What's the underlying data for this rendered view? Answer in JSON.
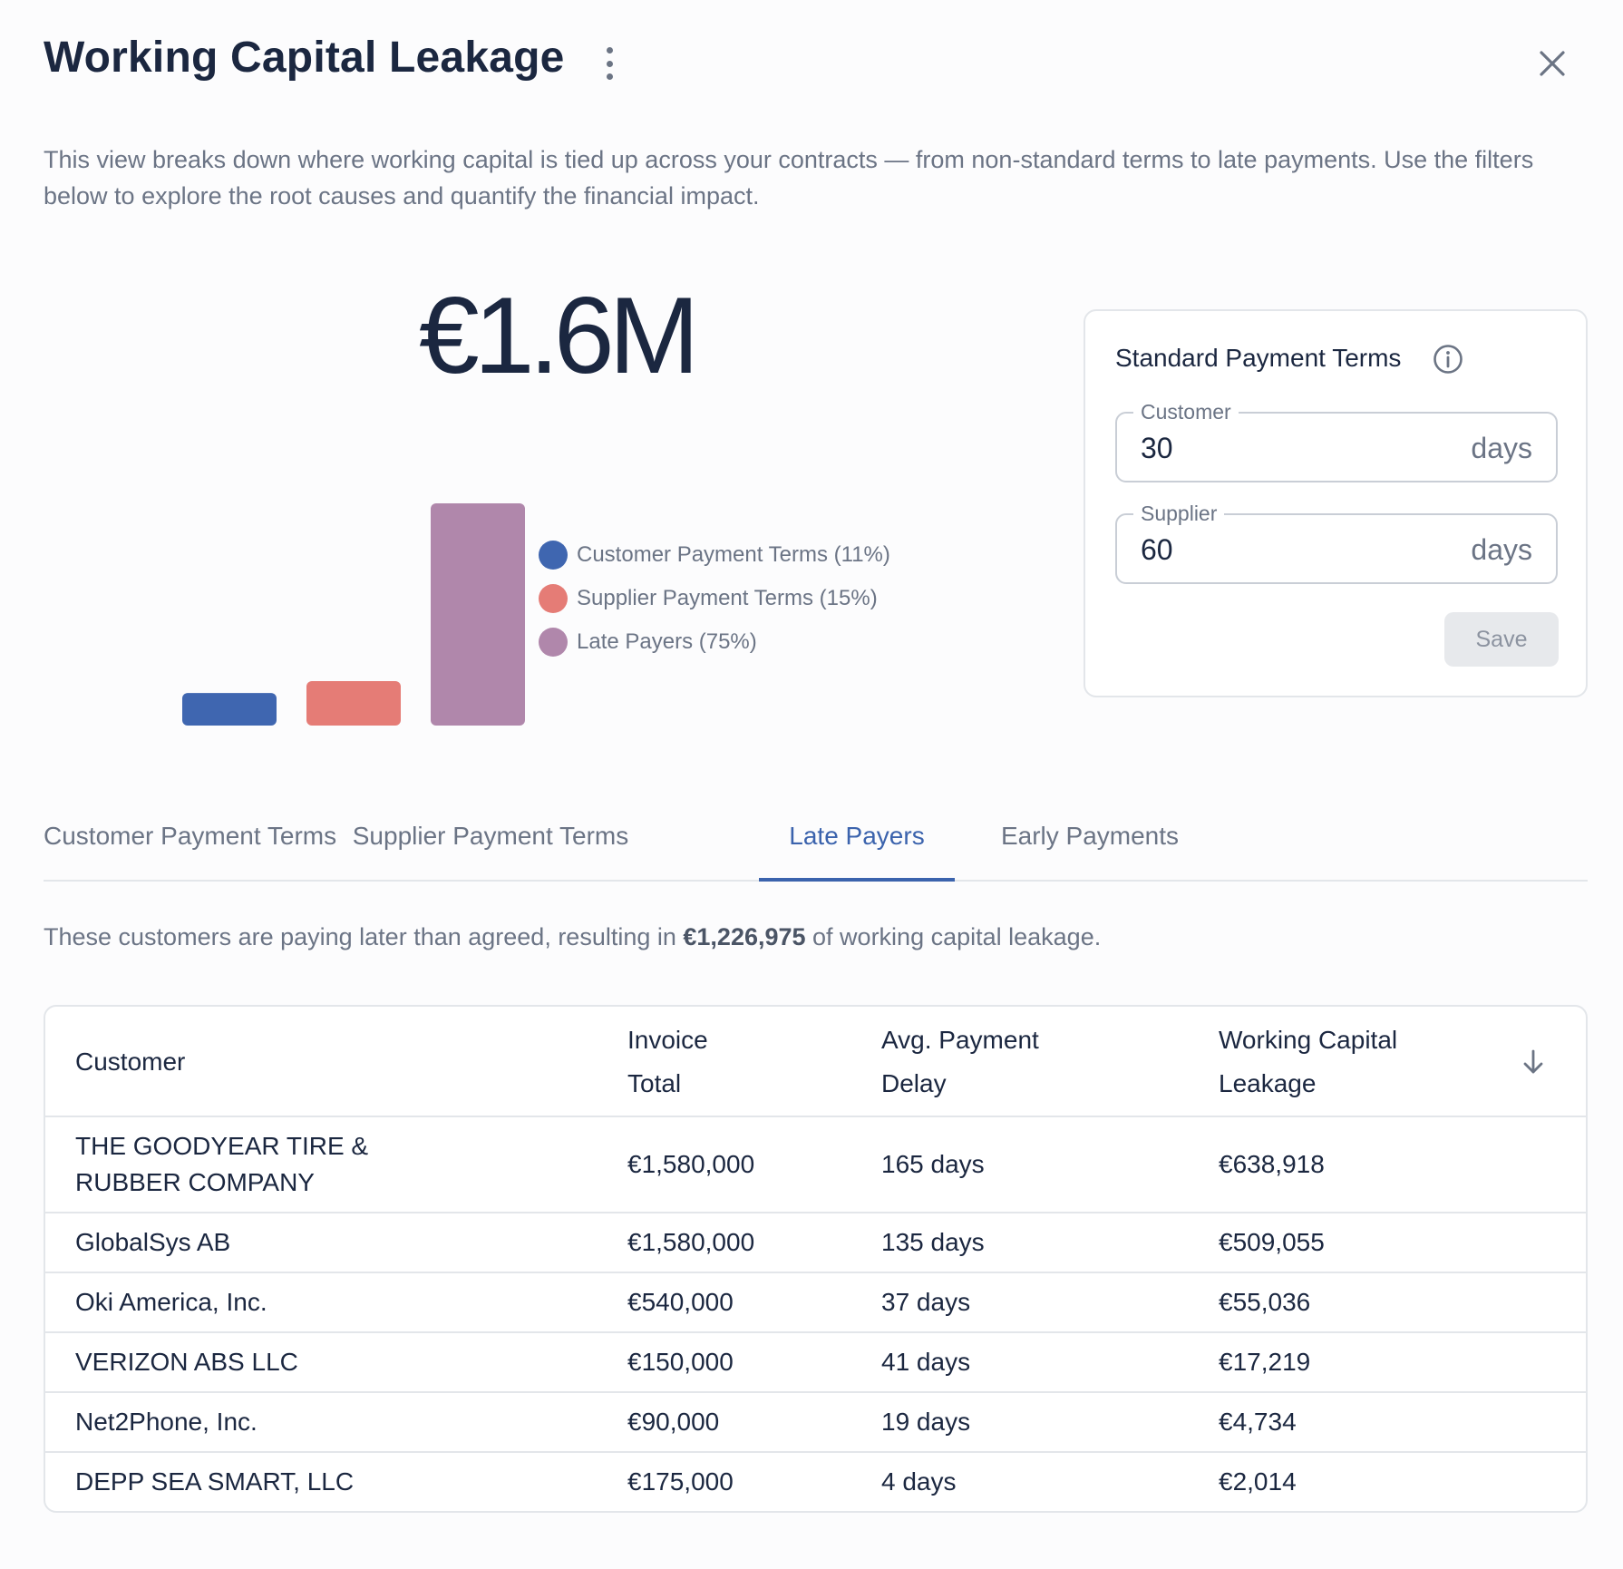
{
  "header": {
    "title": "Working Capital Leakage",
    "description": "This view breaks down where working capital is tied up across your contracts — from non-standard terms to late payments. Use the filters below to explore the root causes and quantify the financial impact."
  },
  "icons": {
    "more": "more-vertical-icon",
    "close": "close-icon",
    "info": "info-icon",
    "sort": "arrow-down-icon"
  },
  "total": "€1.6M",
  "chart_data": {
    "type": "bar",
    "categories": [
      "Customer Payment Terms",
      "Supplier Payment Terms",
      "Late Payers"
    ],
    "values": [
      11,
      15,
      75
    ],
    "unit": "%",
    "legend": [
      "Customer Payment Terms (11%)",
      "Supplier Payment Terms (15%)",
      "Late Payers (75%)"
    ],
    "colors": [
      "#3f66b0",
      "#e57c76",
      "#b087ab"
    ],
    "legend_placement": "right"
  },
  "terms": {
    "title": "Standard Payment Terms",
    "customer": {
      "label": "Customer",
      "value": "30",
      "unit": "days"
    },
    "supplier": {
      "label": "Supplier",
      "value": "60",
      "unit": "days"
    },
    "save_label": "Save"
  },
  "tabs": [
    {
      "label": "Customer Payment Terms",
      "active": false
    },
    {
      "label": "Supplier Payment Terms",
      "active": false
    },
    {
      "label": "Late Payers",
      "active": true
    },
    {
      "label": "Early Payments",
      "active": false
    }
  ],
  "summary": {
    "prefix": "These customers are paying later than agreed, resulting in ",
    "amount": "€1,226,975",
    "suffix": " of working capital leakage."
  },
  "table": {
    "headers": {
      "customer": "Customer",
      "invoice_line1": "Invoice",
      "invoice_line2": "Total",
      "delay_line1": "Avg. Payment",
      "delay_line2": "Delay",
      "leakage_line1": "Working Capital",
      "leakage_line2": "Leakage"
    },
    "rows": [
      {
        "customer": "THE GOODYEAR TIRE & RUBBER COMPANY",
        "invoice": "€1,580,000",
        "delay": "165 days",
        "leakage": "€638,918"
      },
      {
        "customer": "GlobalSys AB",
        "invoice": "€1,580,000",
        "delay": "135 days",
        "leakage": "€509,055"
      },
      {
        "customer": "Oki America, Inc.",
        "invoice": "€540,000",
        "delay": "37 days",
        "leakage": "€55,036"
      },
      {
        "customer": "VERIZON ABS LLC",
        "invoice": "€150,000",
        "delay": "41 days",
        "leakage": "€17,219"
      },
      {
        "customer": "Net2Phone, Inc.",
        "invoice": "€90,000",
        "delay": "19 days",
        "leakage": "€4,734"
      },
      {
        "customer": "DEPP SEA SMART, LLC",
        "invoice": "€175,000",
        "delay": "4 days",
        "leakage": "€2,014"
      }
    ]
  }
}
